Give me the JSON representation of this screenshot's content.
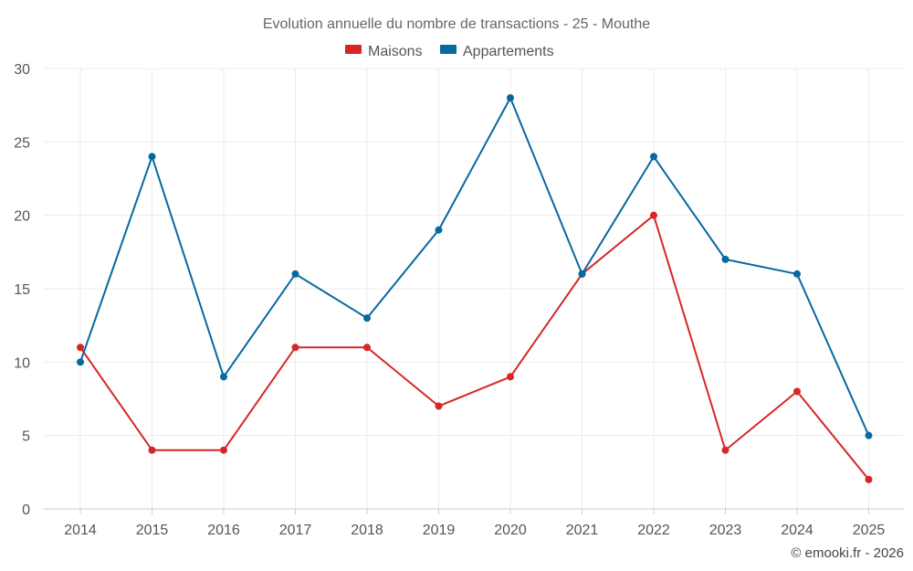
{
  "chart_data": {
    "type": "line",
    "title": "Evolution annuelle du nombre de transactions - 25 - Mouthe",
    "categories": [
      "2014",
      "2015",
      "2016",
      "2017",
      "2018",
      "2019",
      "2020",
      "2021",
      "2022",
      "2023",
      "2024",
      "2025"
    ],
    "series": [
      {
        "name": "Maisons",
        "color": "#d62728",
        "values": [
          11,
          4,
          4,
          11,
          11,
          7,
          9,
          16,
          20,
          4,
          8,
          2
        ]
      },
      {
        "name": "Appartements",
        "color": "#0868a0",
        "values": [
          10,
          24,
          9,
          16,
          13,
          19,
          28,
          16,
          24,
          17,
          16,
          5
        ]
      }
    ],
    "ylim": [
      0,
      30
    ],
    "yticks": [
      "0",
      "5",
      "10",
      "15",
      "20",
      "25",
      "30"
    ],
    "xlabel": "",
    "ylabel": "",
    "grid": true,
    "legend": "top-center"
  },
  "credit": "© emooki.fr - 2026"
}
